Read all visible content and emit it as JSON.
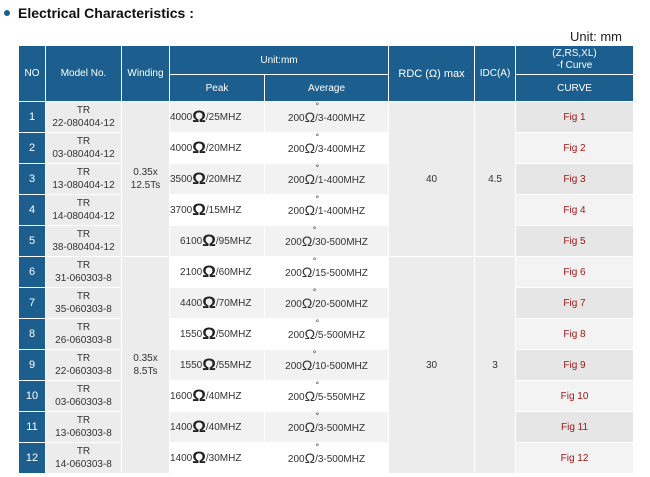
{
  "page": {
    "title": "Electrical Characteristics :",
    "unit": "Unit: mm"
  },
  "headers": {
    "no": "NO",
    "model": "Model No.",
    "winding": "Winding",
    "unitmm": "Unit:mm",
    "peak": "Peak",
    "average": "Average",
    "rdc": "RDC (Ω) max",
    "idc": "IDC(A)",
    "curve_top": "(Z,RS,XL)\n-f Curve",
    "curve": "CURVE"
  },
  "groups": [
    {
      "winding": "0.35x\n12.5Ts",
      "rdc": "40",
      "idc": "4.5"
    },
    {
      "winding": "0.35x\n8.5Ts",
      "rdc": "30",
      "idc": "3"
    }
  ],
  "rows": [
    {
      "no": "1",
      "model": "TR\n22-080404-12",
      "peak_val": "4000",
      "peak_freq": "/25MHZ",
      "avg_val": "200",
      "avg_freq": "/3-400MHZ",
      "curve": "Fig 1"
    },
    {
      "no": "2",
      "model": "TR\n03-080404-12",
      "peak_val": "4000",
      "peak_freq": "/20MHZ",
      "avg_val": "200",
      "avg_freq": "/3-400MHZ",
      "curve": "Fig 2"
    },
    {
      "no": "3",
      "model": "TR\n13-080404-12",
      "peak_val": "3500",
      "peak_freq": "/20MHZ",
      "avg_val": "200",
      "avg_freq": "/1-400MHZ",
      "curve": "Fig 3"
    },
    {
      "no": "4",
      "model": "TR\n14-080404-12",
      "peak_val": "3700",
      "peak_freq": "/15MHZ",
      "avg_val": "200",
      "avg_freq": "/1-400MHZ",
      "curve": "Fig 4"
    },
    {
      "no": "5",
      "model": "TR\n38-080404-12",
      "peak_val": "6100",
      "peak_freq": "/95MHZ",
      "avg_val": "200",
      "avg_freq": "/30-500MHZ",
      "curve": "Fig 5"
    },
    {
      "no": "6",
      "model": "TR\n31-060303-8",
      "peak_val": "2100",
      "peak_freq": "/60MHZ",
      "avg_val": "200",
      "avg_freq": "/15-500MHZ",
      "curve": "Fig 6"
    },
    {
      "no": "7",
      "model": "TR\n35-060303-8",
      "peak_val": "4400",
      "peak_freq": "/70MHZ",
      "avg_val": "200",
      "avg_freq": "/20-500MHZ",
      "curve": "Fig 7"
    },
    {
      "no": "8",
      "model": "TR\n26-060303-8",
      "peak_val": "1550",
      "peak_freq": "/50MHZ",
      "avg_val": "200",
      "avg_freq": "/5-500MHZ",
      "curve": "Fig 8"
    },
    {
      "no": "9",
      "model": "TR\n22-060303-8",
      "peak_val": "1550",
      "peak_freq": "/55MHZ",
      "avg_val": "200",
      "avg_freq": "/10-500MHZ",
      "curve": "Fig 9"
    },
    {
      "no": "10",
      "model": "TR\n03-060303-8",
      "peak_val": "1600",
      "peak_freq": "/40MHZ",
      "avg_val": "200",
      "avg_freq": "/5-550MHZ",
      "curve": "Fig 10"
    },
    {
      "no": "11",
      "model": "TR\n13-060303-8",
      "peak_val": "1400",
      "peak_freq": "/40MHZ",
      "avg_val": "200",
      "avg_freq": "/3-500MHZ",
      "curve": "Fig 11"
    },
    {
      "no": "12",
      "model": "TR\n14-060303-8",
      "peak_val": "1400",
      "peak_freq": "/30MHZ",
      "avg_val": "200",
      "avg_freq": "/3-500MHZ",
      "curve": "Fig 12"
    }
  ]
}
